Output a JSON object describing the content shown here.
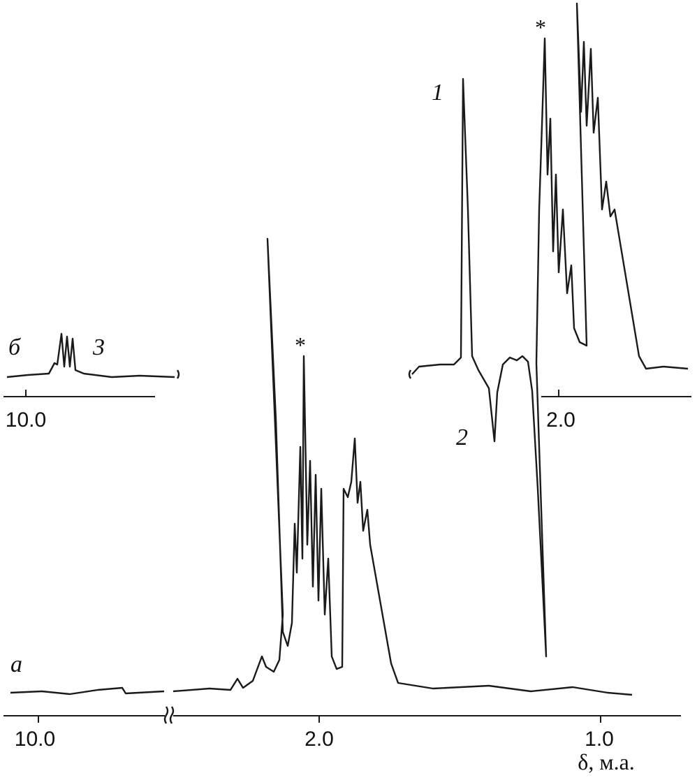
{
  "panels": [
    {
      "label": "а",
      "ticks": [
        "10.0",
        "2.0",
        "1.0"
      ],
      "axis_label": "δ, м.а.",
      "marker": "*"
    },
    {
      "label": "б",
      "ticks": [
        "10.0",
        "2.0"
      ],
      "marker": "*"
    }
  ],
  "annotations": [
    "1",
    "2",
    "3"
  ]
}
